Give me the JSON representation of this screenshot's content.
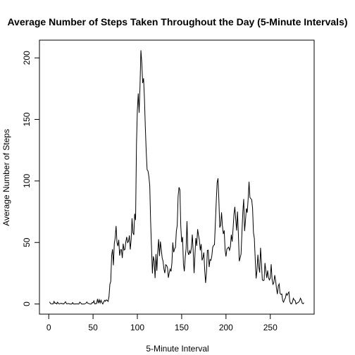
{
  "chart_data": {
    "type": "line",
    "title": "Average Number of Steps Taken Throughout the Day (5-Minute Intervals)",
    "x_label": "5-Minute Interval",
    "y_label": "Average Number of Steps",
    "color": "#000000",
    "xlim": [
      -10.48,
      299.48
    ],
    "xticks": [
      0,
      50,
      100,
      150,
      200,
      250
    ],
    "ylim": [
      -8.25,
      214.42
    ],
    "yticks": [
      0,
      50,
      100,
      150,
      200
    ],
    "x": [
      1,
      2,
      3,
      4,
      5,
      6,
      7,
      8,
      9,
      10,
      11,
      12,
      13,
      14,
      15,
      16,
      17,
      18,
      19,
      20,
      21,
      22,
      23,
      24,
      25,
      26,
      27,
      28,
      29,
      30,
      31,
      32,
      33,
      34,
      35,
      36,
      37,
      38,
      39,
      40,
      41,
      42,
      43,
      44,
      45,
      46,
      47,
      48,
      49,
      50,
      51,
      52,
      53,
      54,
      55,
      56,
      57,
      58,
      59,
      60,
      61,
      62,
      63,
      64,
      65,
      66,
      67,
      68,
      69,
      70,
      71,
      72,
      73,
      74,
      75,
      76,
      77,
      78,
      79,
      80,
      81,
      82,
      83,
      84,
      85,
      86,
      87,
      88,
      89,
      90,
      91,
      92,
      93,
      94,
      95,
      96,
      97,
      98,
      99,
      100,
      101,
      102,
      103,
      104,
      105,
      106,
      107,
      108,
      109,
      110,
      111,
      112,
      113,
      114,
      115,
      116,
      117,
      118,
      119,
      120,
      121,
      122,
      123,
      124,
      125,
      126,
      127,
      128,
      129,
      130,
      131,
      132,
      133,
      134,
      135,
      136,
      137,
      138,
      139,
      140,
      141,
      142,
      143,
      144,
      145,
      146,
      147,
      148,
      149,
      150,
      151,
      152,
      153,
      154,
      155,
      156,
      157,
      158,
      159,
      160,
      161,
      162,
      163,
      164,
      165,
      166,
      167,
      168,
      169,
      170,
      171,
      172,
      173,
      174,
      175,
      176,
      177,
      178,
      179,
      180,
      181,
      182,
      183,
      184,
      185,
      186,
      187,
      188,
      189,
      190,
      191,
      192,
      193,
      194,
      195,
      196,
      197,
      198,
      199,
      200,
      201,
      202,
      203,
      204,
      205,
      206,
      207,
      208,
      209,
      210,
      211,
      212,
      213,
      214,
      215,
      216,
      217,
      218,
      219,
      220,
      221,
      222,
      223,
      224,
      225,
      226,
      227,
      228,
      229,
      230,
      231,
      232,
      233,
      234,
      235,
      236,
      237,
      238,
      239,
      240,
      241,
      242,
      243,
      244,
      245,
      246,
      247,
      248,
      249,
      250,
      251,
      252,
      253,
      254,
      255,
      256,
      257,
      258,
      259,
      260,
      261,
      262,
      263,
      264,
      265,
      266,
      267,
      268,
      269,
      270,
      271,
      272,
      273,
      274,
      275,
      276,
      277,
      278,
      279,
      280,
      281,
      282,
      283,
      284,
      285,
      286,
      287,
      288
    ],
    "values": [
      1.72,
      0.34,
      0.13,
      0.15,
      0.08,
      2.09,
      0.53,
      0.87,
      0,
      1.47,
      0.3,
      0.13,
      0.32,
      0.68,
      0.15,
      0.34,
      0,
      1.11,
      1.83,
      0.17,
      0.17,
      0.38,
      0.26,
      0,
      0,
      0,
      1.13,
      0,
      0,
      0.13,
      0,
      0.23,
      0,
      0,
      1.55,
      0.94,
      0,
      0,
      0,
      0,
      0.21,
      0.62,
      1.62,
      0.58,
      0.49,
      0.08,
      0,
      0,
      1.19,
      0.94,
      2.57,
      0,
      0.34,
      0.36,
      4.11,
      0.66,
      3.49,
      0.83,
      3.11,
      1.11,
      0,
      1.57,
      3,
      2.25,
      3.32,
      2.96,
      2.09,
      6.06,
      16.02,
      18.34,
      39.45,
      44.49,
      31.49,
      49.26,
      53.77,
      63.45,
      49.96,
      47.08,
      52.15,
      39.34,
      44.02,
      44.17,
      37.36,
      49.04,
      43.81,
      44.38,
      50.51,
      54.51,
      49.92,
      50.98,
      55.68,
      44.32,
      52.26,
      69.55,
      57.85,
      56.15,
      73.38,
      68.21,
      129.43,
      157.53,
      171.15,
      155.4,
      177.3,
      206.17,
      195.92,
      179.57,
      183.4,
      167.02,
      143.45,
      124.04,
      109.11,
      108.11,
      103.72,
      95.96,
      66.21,
      45.23,
      24.79,
      38.75,
      34.98,
      21.06,
      40.57,
      26.98,
      42.42,
      52.66,
      38.92,
      50.79,
      44.28,
      37.42,
      34.7,
      28.34,
      25.09,
      31.94,
      31.36,
      29.68,
      21.32,
      25.55,
      28.38,
      26.47,
      33.43,
      49.98,
      42.04,
      44.6,
      46.04,
      59.19,
      63.87,
      87.7,
      94.85,
      92.77,
      63.4,
      50.17,
      54.47,
      32.42,
      26.53,
      37.74,
      45.06,
      67.28,
      42.34,
      39.89,
      43.26,
      40.98,
      46.25,
      56.43,
      42.75,
      25.13,
      39.96,
      53.55,
      47.32,
      60.81,
      55.75,
      51.96,
      43.58,
      48.7,
      35.47,
      37.55,
      41.85,
      27.51,
      17.11,
      26.08,
      43.62,
      43.77,
      30.02,
      36.08,
      35.49,
      38.85,
      45.96,
      47.75,
      48.13,
      65.32,
      82.91,
      98.66,
      102.11,
      83.96,
      62.13,
      64.13,
      74.55,
      63.17,
      56.91,
      59.77,
      43.87,
      38.57,
      44.66,
      45.45,
      46.21,
      43.68,
      46.62,
      56.3,
      50.72,
      61.23,
      72.72,
      78.94,
      68.94,
      59.66,
      75.09,
      56.51,
      34.77,
      37.45,
      40.68,
      58.02,
      74.7,
      85.32,
      59.26,
      67.77,
      77.7,
      74.25,
      85.34,
      99.45,
      86.58,
      85.6,
      84.87,
      77.83,
      58.04,
      53.36,
      36.32,
      20.72,
      27.4,
      40.02,
      30.21,
      25.55,
      45.66,
      33.53,
      19.62,
      19.02,
      19.34,
      33.34,
      26.81,
      21.17,
      27.3,
      21.34,
      19.55,
      21.32,
      32.3,
      20.15,
      15.94,
      17.23,
      23.45,
      19.25,
      12.45,
      8.02,
      14.66,
      16.3,
      8.68,
      7.79,
      8.13,
      2.62,
      1.45,
      3.68,
      4.81,
      8.51,
      7.08,
      8.7,
      9.75,
      2.21,
      0.32,
      0.11,
      1.6,
      4.6,
      3.3,
      2.85,
      0,
      0.83,
      0.96,
      1.58,
      2.6,
      4.7,
      3.3,
      0.64,
      0.23,
      1.08
    ]
  }
}
